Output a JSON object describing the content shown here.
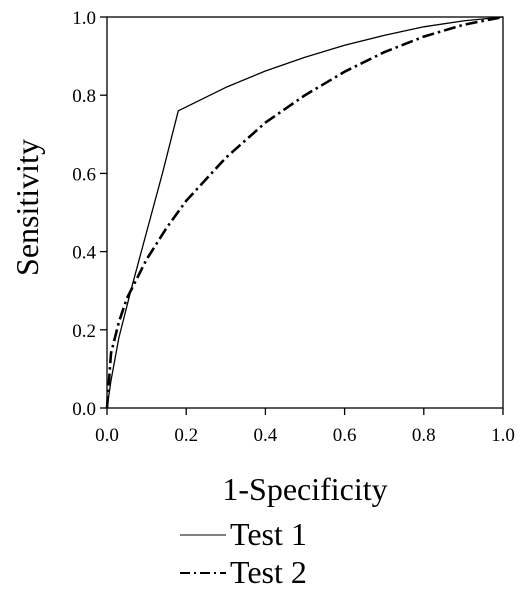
{
  "chart_data": {
    "type": "line",
    "title": "",
    "xlabel": "1-Specificity",
    "ylabel": "Sensitivity",
    "xlim": [
      0,
      1
    ],
    "ylim": [
      0,
      1
    ],
    "xticks": [
      "0.0",
      "0.2",
      "0.4",
      "0.6",
      "0.8",
      "1.0"
    ],
    "yticks": [
      "0.0",
      "0.2",
      "0.4",
      "0.6",
      "0.8",
      "1.0"
    ],
    "grid": false,
    "legend_position": "bottom",
    "series": [
      {
        "name": "Test 1",
        "line_style": "solid",
        "color": "#000000",
        "points": [
          [
            0.0,
            0.0
          ],
          [
            0.01,
            0.07
          ],
          [
            0.03,
            0.18
          ],
          [
            0.06,
            0.3
          ],
          [
            0.1,
            0.45
          ],
          [
            0.14,
            0.6
          ],
          [
            0.18,
            0.76
          ],
          [
            0.25,
            0.795
          ],
          [
            0.3,
            0.82
          ],
          [
            0.4,
            0.862
          ],
          [
            0.5,
            0.897
          ],
          [
            0.6,
            0.928
          ],
          [
            0.7,
            0.953
          ],
          [
            0.8,
            0.975
          ],
          [
            0.9,
            0.99
          ],
          [
            1.0,
            1.0
          ]
        ]
      },
      {
        "name": "Test 2",
        "line_style": "dash-dot",
        "color": "#000000",
        "points": [
          [
            0.0,
            0.0
          ],
          [
            0.005,
            0.07
          ],
          [
            0.01,
            0.14
          ],
          [
            0.03,
            0.22
          ],
          [
            0.05,
            0.28
          ],
          [
            0.1,
            0.38
          ],
          [
            0.15,
            0.46
          ],
          [
            0.2,
            0.53
          ],
          [
            0.3,
            0.64
          ],
          [
            0.4,
            0.73
          ],
          [
            0.5,
            0.8
          ],
          [
            0.6,
            0.86
          ],
          [
            0.7,
            0.91
          ],
          [
            0.8,
            0.95
          ],
          [
            0.9,
            0.98
          ],
          [
            1.0,
            1.0
          ]
        ]
      }
    ]
  }
}
